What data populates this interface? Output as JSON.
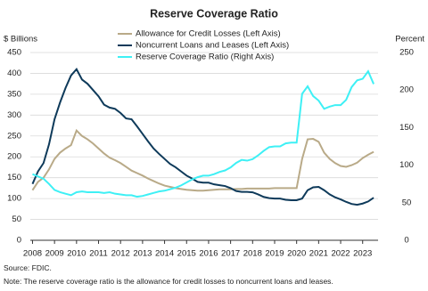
{
  "chart_data": {
    "type": "line",
    "title": "Reserve Coverage Ratio",
    "y_label": "$ Billions",
    "y2_label": "Percent",
    "xlim": [
      2007.9,
      2023.7
    ],
    "xticks": [
      2008,
      2009,
      2010,
      2011,
      2012,
      2013,
      2014,
      2015,
      2016,
      2017,
      2018,
      2019,
      2020,
      2021,
      2022,
      2023
    ],
    "ylim": [
      0,
      450
    ],
    "yticks": [
      0,
      50,
      100,
      150,
      200,
      250,
      300,
      350,
      400,
      450
    ],
    "y2lim": [
      0,
      250
    ],
    "y2ticks": [
      0,
      50,
      100,
      150,
      200,
      250
    ],
    "grid": true,
    "legend": "top",
    "x": [
      2008,
      2008.25,
      2008.5,
      2008.75,
      2009,
      2009.25,
      2009.5,
      2009.75,
      2010,
      2010.25,
      2010.5,
      2010.75,
      2011,
      2011.25,
      2011.5,
      2011.75,
      2012,
      2012.25,
      2012.5,
      2012.75,
      2013,
      2013.25,
      2013.5,
      2013.75,
      2014,
      2014.25,
      2014.5,
      2014.75,
      2015,
      2015.25,
      2015.5,
      2015.75,
      2016,
      2016.25,
      2016.5,
      2016.75,
      2017,
      2017.25,
      2017.5,
      2017.75,
      2018,
      2018.25,
      2018.5,
      2018.75,
      2019,
      2019.25,
      2019.5,
      2019.75,
      2020,
      2020.25,
      2020.5,
      2020.75,
      2021,
      2021.25,
      2021.5,
      2021.75,
      2022,
      2022.25,
      2022.5,
      2022.75,
      2023,
      2023.25,
      2023.5
    ],
    "series": [
      {
        "name": "Allowance for Credit Losses (Left Axis)",
        "color": "#b9aa88",
        "values": [
          120,
          140,
          150,
          170,
          195,
          210,
          220,
          228,
          263,
          250,
          242,
          232,
          220,
          208,
          198,
          192,
          185,
          176,
          167,
          161,
          155,
          148,
          142,
          136,
          131,
          128,
          125,
          123,
          121,
          120,
          119,
          119,
          120,
          121,
          122,
          122,
          122,
          123,
          123,
          124,
          124,
          124,
          124,
          124,
          125,
          125,
          125,
          125,
          125,
          195,
          242,
          243,
          236,
          210,
          195,
          185,
          178,
          176,
          180,
          186,
          197,
          205,
          212
        ]
      },
      {
        "name": "Noncurrent Loans and Leases (Left Axis)",
        "color": "#0e3a5a",
        "values": [
          135,
          165,
          185,
          230,
          290,
          330,
          365,
          395,
          410,
          385,
          375,
          360,
          345,
          325,
          318,
          315,
          305,
          292,
          290,
          273,
          255,
          237,
          220,
          207,
          195,
          183,
          175,
          165,
          155,
          148,
          140,
          138,
          138,
          134,
          132,
          130,
          125,
          118,
          116,
          116,
          115,
          110,
          104,
          101,
          100,
          100,
          97,
          96,
          96,
          100,
          120,
          127,
          128,
          120,
          110,
          103,
          98,
          92,
          87,
          85,
          88,
          93,
          102
        ]
      },
      {
        "name": "Reserve Coverage Ratio (Right Axis)",
        "color": "#3ef0f5",
        "axis": "y2",
        "values": [
          88,
          85,
          82,
          75,
          67,
          64,
          62,
          60,
          64,
          65,
          64,
          64,
          64,
          63,
          64,
          62,
          61,
          60,
          60,
          58,
          59,
          61,
          63,
          65,
          66,
          68,
          70,
          73,
          77,
          81,
          84,
          86,
          86,
          88,
          91,
          93,
          97,
          103,
          107,
          106,
          108,
          113,
          119,
          124,
          125,
          125,
          129,
          130,
          130,
          195,
          205,
          192,
          186,
          175,
          178,
          180,
          180,
          187,
          204,
          213,
          215,
          225,
          208
        ]
      }
    ]
  },
  "source": "Source: FDIC.",
  "note": "Note: The reserve coverage ratio is the allowance for credit losses to noncurrent loans and leases."
}
